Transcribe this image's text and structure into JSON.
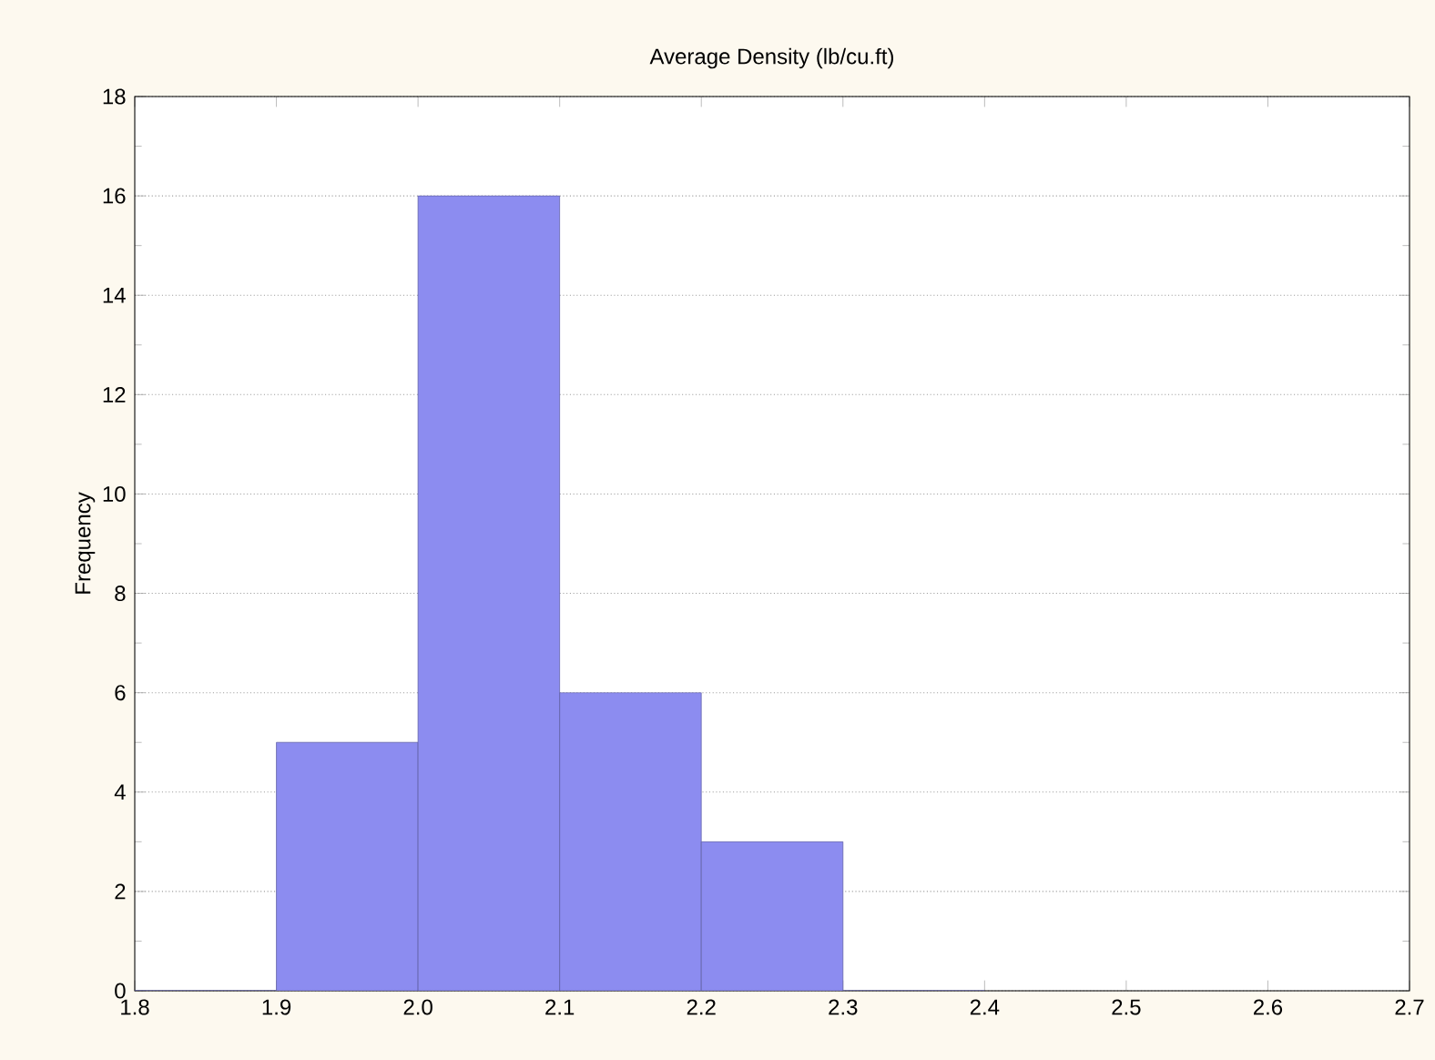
{
  "chart_data": {
    "type": "histogram",
    "title": "Average Density (lb/cu.ft)",
    "ylabel": "Frequency",
    "bins": [
      1.8,
      1.9,
      2.0,
      2.1,
      2.2,
      2.3,
      2.4
    ],
    "values": [
      0,
      5,
      16,
      6,
      3,
      0
    ],
    "color": "#8c8cf0",
    "xlim": [
      1.8,
      2.7
    ],
    "xticks": [
      1.8,
      1.9,
      {
        "value": 2.0,
        "label": "2.0"
      },
      2.1,
      2.2,
      2.3,
      2.4,
      2.5,
      2.6,
      2.7
    ],
    "ylim": [
      0,
      18
    ],
    "yticks": [
      0,
      2,
      4,
      6,
      8,
      10,
      12,
      14,
      16,
      18
    ],
    "grid": "y"
  }
}
